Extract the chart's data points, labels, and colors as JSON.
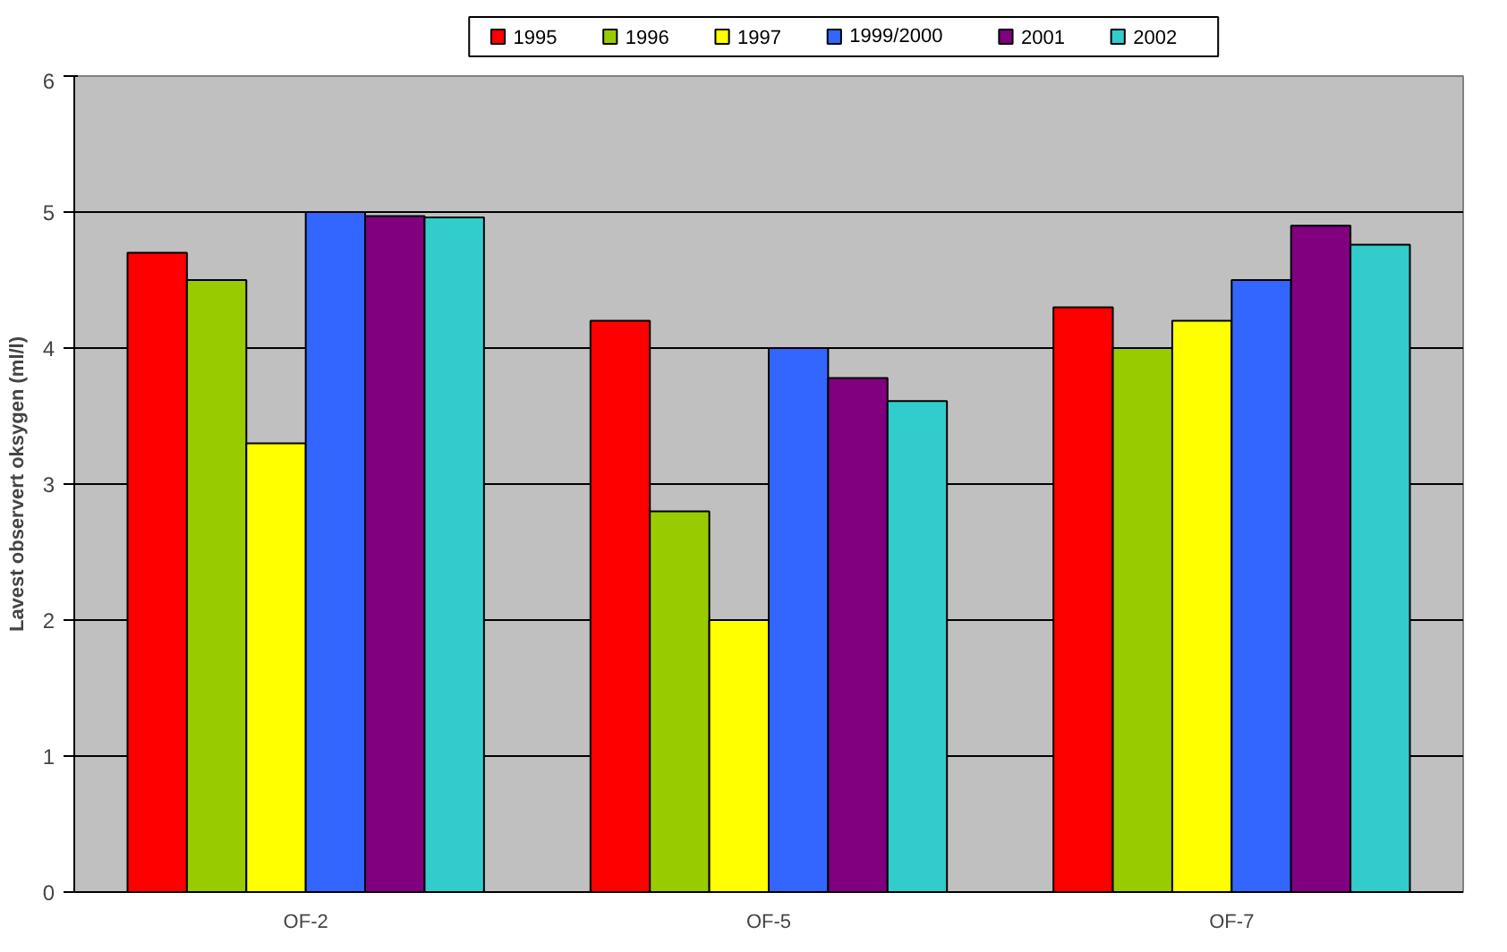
{
  "chart_data": {
    "type": "bar",
    "ylabel": "Lavest observert oksygen (ml/l)",
    "categories": [
      "OF-2",
      "OF-5",
      "OF-7"
    ],
    "series": [
      {
        "name": "1995",
        "color": "#ff0000",
        "values": [
          4.7,
          4.2,
          4.3
        ]
      },
      {
        "name": "1996",
        "color": "#99cc00",
        "values": [
          4.5,
          2.8,
          4.0
        ]
      },
      {
        "name": "1997",
        "color": "#ffff00",
        "values": [
          3.3,
          2.0,
          4.2
        ]
      },
      {
        "name": "1999/2000",
        "color": "#3366ff",
        "values": [
          5.0,
          4.0,
          4.5
        ]
      },
      {
        "name": "2001",
        "color": "#800080",
        "values": [
          4.97,
          3.78,
          4.9
        ]
      },
      {
        "name": "2002",
        "color": "#33cccc",
        "values": [
          4.96,
          3.61,
          4.76
        ]
      }
    ],
    "ylim": [
      0,
      6
    ],
    "yticks": [
      0,
      1,
      2,
      3,
      4,
      5,
      6
    ],
    "grid": "y",
    "legend": "top"
  }
}
